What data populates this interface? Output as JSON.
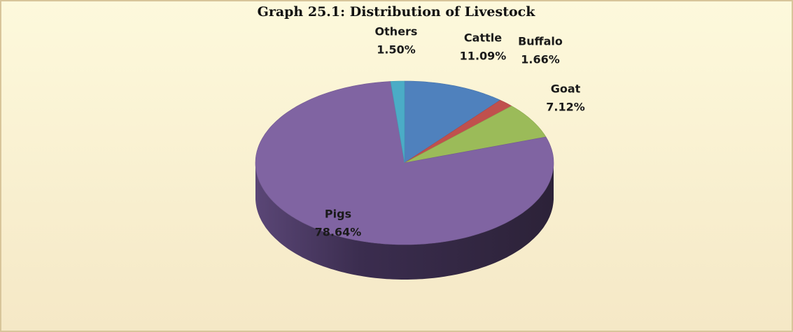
{
  "chart_data": {
    "type": "pie",
    "title": "Graph 25.1: Distribution of Livestock",
    "categories": [
      "Cattle",
      "Buffalo",
      "Goat",
      "Pigs",
      "Others"
    ],
    "values": [
      11.09,
      1.66,
      7.12,
      78.64,
      1.5
    ],
    "value_labels": [
      "11.09%",
      "1.66%",
      "7.12%",
      "78.64%",
      "1.50%"
    ],
    "colors": [
      "#4f81bd",
      "#c0504d",
      "#9bbb59",
      "#8064a2",
      "#4bacc6"
    ]
  }
}
